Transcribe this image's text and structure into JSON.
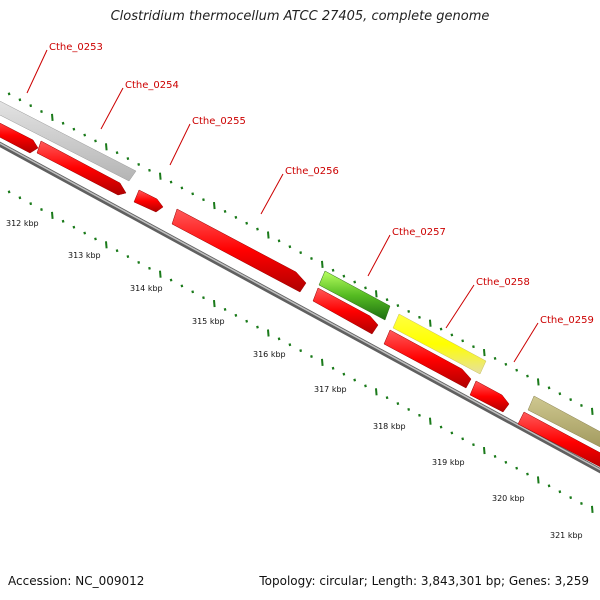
{
  "title": "Clostridium thermocellum ATCC 27405, complete genome",
  "accession_text": "Accession: NC_009012",
  "summary_text": "Topology: circular; Length: 3,843,301 bp; Genes: 3,259",
  "colors": {
    "label": "#cc0000",
    "cds_forward": "#ff0000",
    "tick": "#1a7a1a",
    "backbone": "#888888",
    "gene_grey": "#c8c8c8",
    "gene_green": "#44aa22",
    "gene_yellow": "#ffff00",
    "gene_olive": "#b8b070"
  },
  "genes": [
    {
      "id": "Cthe_0253",
      "label": "Cthe_0253"
    },
    {
      "id": "Cthe_0254",
      "label": "Cthe_0254"
    },
    {
      "id": "Cthe_0255",
      "label": "Cthe_0255"
    },
    {
      "id": "Cthe_0256",
      "label": "Cthe_0256"
    },
    {
      "id": "Cthe_0257",
      "label": "Cthe_0257"
    },
    {
      "id": "Cthe_0258",
      "label": "Cthe_0258"
    },
    {
      "id": "Cthe_0259",
      "label": "Cthe_0259"
    }
  ],
  "scale_labels": [
    "312 kbp",
    "313 kbp",
    "314 kbp",
    "315 kbp",
    "316 kbp",
    "317 kbp",
    "318 kbp",
    "319 kbp",
    "320 kbp",
    "321 kbp"
  ]
}
